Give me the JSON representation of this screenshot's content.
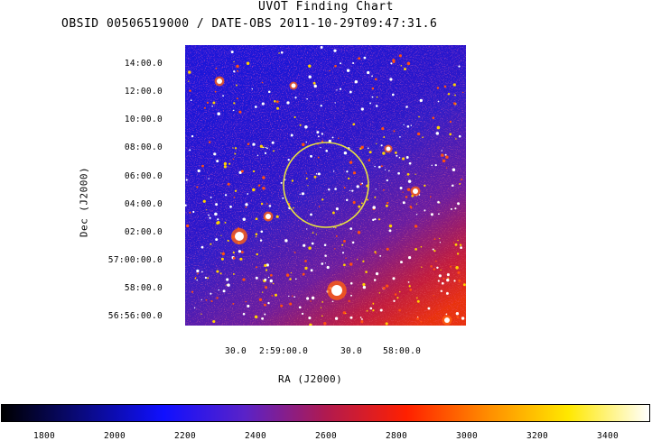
{
  "title": "UVOT Finding Chart",
  "subtitle": "OBSID 00506519000 / DATE-OBS 2011-10-29T09:47:31.6",
  "axes": {
    "xlabel": "RA (J2000)",
    "ylabel": "Dec (J2000)",
    "ra_ticks": [
      "30.0",
      "2:59:00.0",
      "30.0",
      "58:00.0"
    ],
    "dec_ticks": [
      "14:00.0",
      "12:00.0",
      "10:00.0",
      "08:00.0",
      "06:00.0",
      "04:00.0",
      "02:00.0",
      "57:00:00.0",
      "58:00.0",
      "56:56:00.0"
    ]
  },
  "colorbar": {
    "ticks": [
      "1800",
      "2000",
      "2200",
      "2400",
      "2600",
      "2800",
      "3000",
      "3200",
      "3400"
    ],
    "colormap": [
      "#000000",
      "#0a0a80",
      "#1010ff",
      "#5a22c8",
      "#b01a50",
      "#ff2000",
      "#ff8c00",
      "#ffe800",
      "#ffffff"
    ]
  },
  "image": {
    "circle_color": "#e8e040"
  }
}
